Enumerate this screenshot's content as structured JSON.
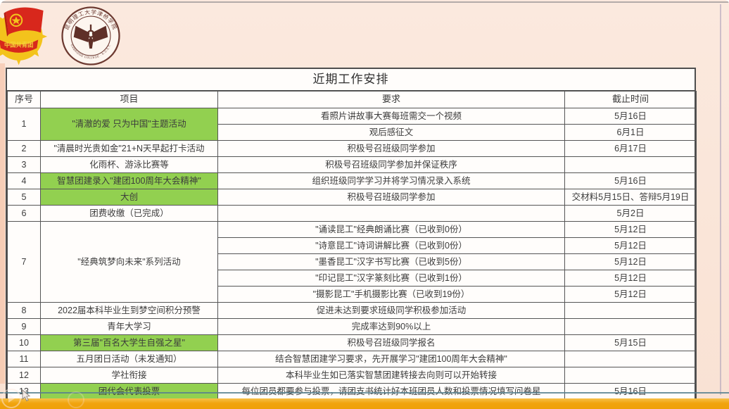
{
  "page": {
    "title": "近期工作安排"
  },
  "logos": {
    "cyl_banner_text": "中国共青团",
    "college_seal_cn": "昆明理工大学津桥学院",
    "college_seal_en": "OXBRIDGE COLLEGE · K.U.S.T."
  },
  "table": {
    "columns": [
      "序号",
      "项目",
      "要求",
      "截止时间"
    ],
    "rows": [
      {
        "no": "1",
        "project": "\"清澈的爱 只为中国\"主题活动",
        "green": true,
        "items": [
          {
            "req": "看照片讲故事大赛每班需交一个视频",
            "due": "5月16日"
          },
          {
            "req": "观后感征文",
            "due": "6月1日"
          }
        ]
      },
      {
        "no": "2",
        "project": "\"清晨时光贵如金\"21+N天早起打卡活动",
        "green": false,
        "items": [
          {
            "req": "积极号召班级同学参加",
            "due": "6月17日"
          }
        ]
      },
      {
        "no": "3",
        "project": "化雨杯、游泳比赛等",
        "green": false,
        "items": [
          {
            "req": "积极号召班级同学参加并保证秩序",
            "due": ""
          }
        ]
      },
      {
        "no": "4",
        "project": "智慧团建录入\"建团100周年大会精神\"",
        "green": true,
        "items": [
          {
            "req": "组织班级同学学习并将学习情况录入系统",
            "due": "5月16日"
          }
        ]
      },
      {
        "no": "5",
        "project": "大创",
        "green": true,
        "items": [
          {
            "req": "积极号召班级同学参加",
            "due": "交材料5月15日、答辩5月19日"
          }
        ]
      },
      {
        "no": "6",
        "project": "团费收缴（已完成）",
        "green": false,
        "items": [
          {
            "req": "",
            "due": "5月2日"
          }
        ]
      },
      {
        "no": "7",
        "project": "\"经典筑梦向未来\"系列活动",
        "green": false,
        "items": [
          {
            "req": "\"诵读昆工\"经典朗诵比赛（已收到0份）",
            "due": "5月12日"
          },
          {
            "req": "\"诗意昆工\"诗词讲解比赛（已收到0份）",
            "due": "5月12日"
          },
          {
            "req": "\"墨香昆工\"汉字书写比赛（已收到5份）",
            "due": "5月12日"
          },
          {
            "req": "\"印记昆工\"汉字篆刻比赛（已收到1份）",
            "due": "5月12日"
          },
          {
            "req": "\"摄影昆工\"手机摄影比赛（已收到19份）",
            "due": "5月12日"
          }
        ]
      },
      {
        "no": "8",
        "project": "2022届本科毕业生到梦空间积分预警",
        "green": false,
        "items": [
          {
            "req": "促进未达到要求班级同学积极参加活动",
            "due": ""
          }
        ]
      },
      {
        "no": "9",
        "project": "青年大学习",
        "green": false,
        "items": [
          {
            "req": "完成率达到90%以上",
            "due": ""
          }
        ]
      },
      {
        "no": "10",
        "project": "第三届\"百名大学生自强之星\"",
        "green": true,
        "items": [
          {
            "req": "积极号召班级同学报名",
            "due": "5月15日"
          }
        ]
      },
      {
        "no": "11",
        "project": "五月团日活动（未发通知）",
        "green": false,
        "items": [
          {
            "req": "结合智慧团建学习要求，先开展学习\"建团100周年大会精神\"",
            "due": ""
          }
        ]
      },
      {
        "no": "12",
        "project": "学社衔接",
        "green": false,
        "items": [
          {
            "req": "本科毕业生如已落实智慧团建转接去向则可以开始转接",
            "due": ""
          }
        ]
      },
      {
        "no": "13",
        "project": "团代会代表投票",
        "green": true,
        "items": [
          {
            "req": "每位团员都要参与投票，请团支书统计好本班团员人数和投票情况填写问卷星",
            "due": "5月16日"
          }
        ]
      }
    ]
  },
  "colors": {
    "highlight_green": "#92d050",
    "slide_pink": "#fae6d9",
    "amber_strip": "#f1a40f",
    "teal_line": "#57808e"
  }
}
